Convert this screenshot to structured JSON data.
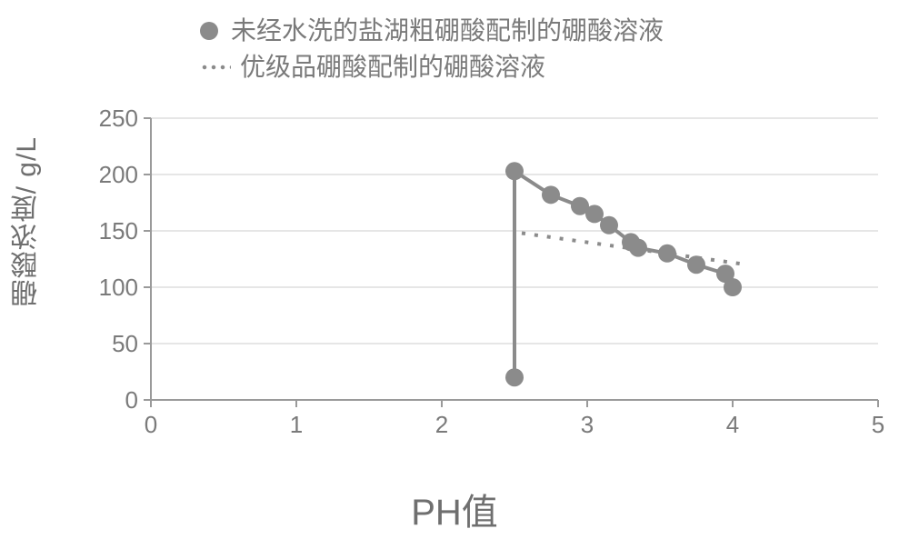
{
  "legend": {
    "series1_label": "未经水洗的盐湖粗硼酸配制的硼酸溶液",
    "series2_label": "优级品硼酸配制的硼酸溶液"
  },
  "y": {
    "label": "硼酸浓度/ g/L",
    "lim": [
      0,
      250
    ],
    "ticks": [
      0,
      50,
      100,
      150,
      200,
      250
    ],
    "label_fontsize": 30,
    "tick_fontsize": 26
  },
  "x": {
    "label": "PH值",
    "lim": [
      0,
      5
    ],
    "ticks": [
      0,
      1,
      2,
      3,
      4,
      5
    ],
    "label_fontsize": 40,
    "tick_fontsize": 26
  },
  "colors": {
    "series": "#8b8b8b",
    "axis": "#9a9a9a",
    "grid": "#d6d6d6",
    "text": "#7a7a7a",
    "background": "#ffffff"
  },
  "chart": {
    "type": "line",
    "marker_radius": 10,
    "line_width": 4,
    "dotted_dash": "4 10",
    "series1": {
      "name": "unwashed-crude-boric-acid",
      "x": [
        2.5,
        2.5,
        2.75,
        2.95,
        3.05,
        3.15,
        3.3,
        3.35,
        3.55,
        3.75,
        3.95,
        4.0
      ],
      "y": [
        20,
        203,
        182,
        172,
        165,
        155,
        140,
        135,
        130,
        120,
        112,
        100
      ],
      "show_markers": true
    },
    "series2": {
      "name": "premium-boric-acid",
      "x": [
        2.55,
        4.1
      ],
      "y": [
        148,
        120
      ],
      "style": "dotted",
      "show_markers": false
    }
  }
}
